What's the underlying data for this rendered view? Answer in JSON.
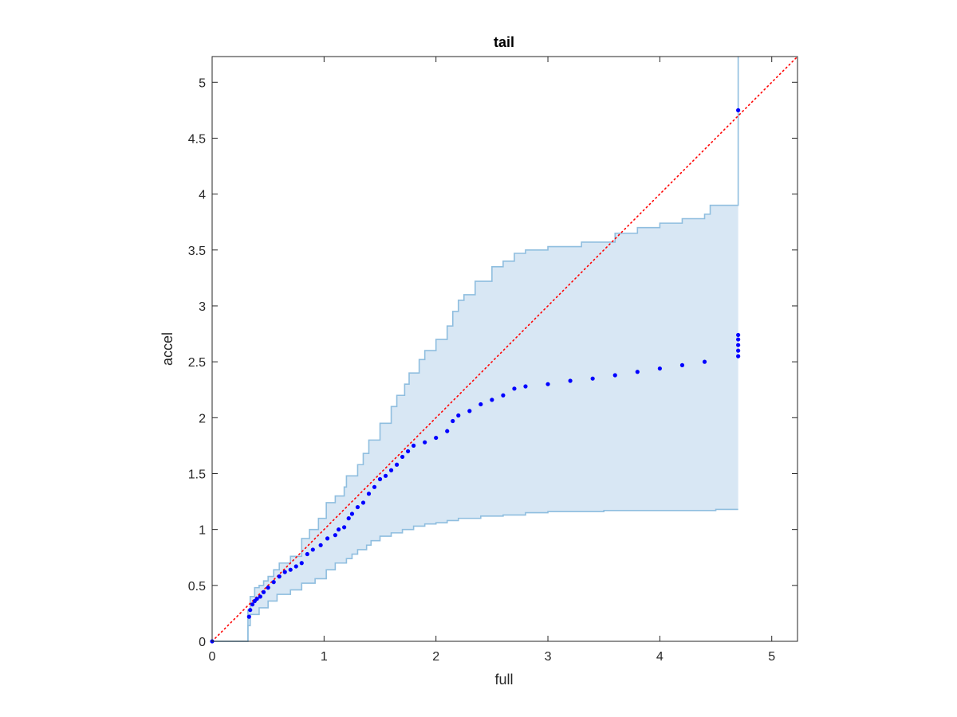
{
  "chart_data": {
    "type": "scatter",
    "title": "tail",
    "xlabel": "full",
    "ylabel": "accel",
    "xlim": [
      0,
      5.23
    ],
    "ylim": [
      0,
      5.23
    ],
    "x_ticks": [
      0,
      1,
      2,
      3,
      4,
      5
    ],
    "x_tick_labels": [
      "0",
      "1",
      "2",
      "3",
      "4",
      "5"
    ],
    "y_ticks": [
      0,
      0.5,
      1,
      1.5,
      2,
      2.5,
      3,
      3.5,
      4,
      4.5,
      5
    ],
    "y_tick_labels": [
      "0",
      "0.5",
      "1",
      "1.5",
      "2",
      "2.5",
      "3",
      "3.5",
      "4",
      "4.5",
      "5"
    ],
    "grid": false,
    "box": true,
    "colors": {
      "points": "#0000ff",
      "band_fill": "#d8e7f4",
      "band_edge": "#8fbedf",
      "reference": "#ff0000",
      "axis": "#262626"
    },
    "reference_line": {
      "style": "dotted",
      "from": [
        0,
        0
      ],
      "to": [
        5.23,
        5.23
      ]
    },
    "band": {
      "upper": [
        [
          0,
          0
        ],
        [
          0.32,
          0.28
        ],
        [
          0.34,
          0.4
        ],
        [
          0.38,
          0.48
        ],
        [
          0.42,
          0.5
        ],
        [
          0.46,
          0.54
        ],
        [
          0.5,
          0.58
        ],
        [
          0.55,
          0.64
        ],
        [
          0.6,
          0.7
        ],
        [
          0.7,
          0.76
        ],
        [
          0.8,
          0.92
        ],
        [
          0.87,
          1.0
        ],
        [
          0.95,
          1.1
        ],
        [
          1.02,
          1.24
        ],
        [
          1.1,
          1.3
        ],
        [
          1.18,
          1.38
        ],
        [
          1.2,
          1.48
        ],
        [
          1.3,
          1.58
        ],
        [
          1.35,
          1.68
        ],
        [
          1.4,
          1.8
        ],
        [
          1.5,
          1.95
        ],
        [
          1.6,
          2.1
        ],
        [
          1.65,
          2.2
        ],
        [
          1.72,
          2.3
        ],
        [
          1.76,
          2.4
        ],
        [
          1.85,
          2.52
        ],
        [
          1.9,
          2.6
        ],
        [
          2.0,
          2.7
        ],
        [
          2.1,
          2.82
        ],
        [
          2.15,
          2.95
        ],
        [
          2.2,
          3.05
        ],
        [
          2.25,
          3.1
        ],
        [
          2.35,
          3.22
        ],
        [
          2.5,
          3.35
        ],
        [
          2.6,
          3.4
        ],
        [
          2.7,
          3.47
        ],
        [
          2.8,
          3.5
        ],
        [
          3.0,
          3.53
        ],
        [
          3.3,
          3.57
        ],
        [
          3.6,
          3.65
        ],
        [
          3.8,
          3.7
        ],
        [
          4.0,
          3.74
        ],
        [
          4.2,
          3.78
        ],
        [
          4.4,
          3.82
        ],
        [
          4.45,
          3.9
        ],
        [
          4.58,
          3.9
        ],
        [
          4.7,
          3.9
        ],
        [
          4.7,
          5.23
        ]
      ],
      "lower": [
        [
          0,
          0
        ],
        [
          0.32,
          0.14
        ],
        [
          0.34,
          0.24
        ],
        [
          0.42,
          0.3
        ],
        [
          0.5,
          0.36
        ],
        [
          0.58,
          0.42
        ],
        [
          0.7,
          0.46
        ],
        [
          0.8,
          0.52
        ],
        [
          0.92,
          0.56
        ],
        [
          1.02,
          0.64
        ],
        [
          1.1,
          0.7
        ],
        [
          1.2,
          0.74
        ],
        [
          1.25,
          0.78
        ],
        [
          1.3,
          0.82
        ],
        [
          1.38,
          0.86
        ],
        [
          1.42,
          0.9
        ],
        [
          1.5,
          0.94
        ],
        [
          1.6,
          0.97
        ],
        [
          1.7,
          1.0
        ],
        [
          1.8,
          1.03
        ],
        [
          1.9,
          1.05
        ],
        [
          2.0,
          1.06
        ],
        [
          2.1,
          1.08
        ],
        [
          2.2,
          1.1
        ],
        [
          2.4,
          1.12
        ],
        [
          2.6,
          1.13
        ],
        [
          2.8,
          1.15
        ],
        [
          3.0,
          1.16
        ],
        [
          3.5,
          1.17
        ],
        [
          4.0,
          1.17
        ],
        [
          4.5,
          1.18
        ],
        [
          4.7,
          1.18
        ]
      ]
    },
    "series": [
      {
        "values": [
          [
            0,
            0
          ],
          [
            0.33,
            0.22
          ],
          [
            0.34,
            0.28
          ],
          [
            0.36,
            0.33
          ],
          [
            0.38,
            0.36
          ],
          [
            0.4,
            0.38
          ],
          [
            0.43,
            0.4
          ],
          [
            0.46,
            0.44
          ],
          [
            0.5,
            0.48
          ],
          [
            0.55,
            0.53
          ],
          [
            0.6,
            0.58
          ],
          [
            0.65,
            0.62
          ],
          [
            0.7,
            0.64
          ],
          [
            0.75,
            0.67
          ],
          [
            0.8,
            0.7
          ],
          [
            0.85,
            0.78
          ],
          [
            0.9,
            0.82
          ],
          [
            0.97,
            0.86
          ],
          [
            1.03,
            0.92
          ],
          [
            1.1,
            0.95
          ],
          [
            1.13,
            1.0
          ],
          [
            1.18,
            1.02
          ],
          [
            1.22,
            1.1
          ],
          [
            1.25,
            1.14
          ],
          [
            1.3,
            1.2
          ],
          [
            1.35,
            1.24
          ],
          [
            1.4,
            1.32
          ],
          [
            1.45,
            1.38
          ],
          [
            1.5,
            1.45
          ],
          [
            1.55,
            1.48
          ],
          [
            1.6,
            1.53
          ],
          [
            1.65,
            1.58
          ],
          [
            1.7,
            1.65
          ],
          [
            1.75,
            1.7
          ],
          [
            1.8,
            1.75
          ],
          [
            1.9,
            1.78
          ],
          [
            2.0,
            1.82
          ],
          [
            2.1,
            1.88
          ],
          [
            2.15,
            1.97
          ],
          [
            2.2,
            2.02
          ],
          [
            2.3,
            2.06
          ],
          [
            2.4,
            2.12
          ],
          [
            2.5,
            2.16
          ],
          [
            2.6,
            2.2
          ],
          [
            2.7,
            2.26
          ],
          [
            2.8,
            2.28
          ],
          [
            3.0,
            2.3
          ],
          [
            3.2,
            2.33
          ],
          [
            3.4,
            2.35
          ],
          [
            3.6,
            2.38
          ],
          [
            3.8,
            2.41
          ],
          [
            4.0,
            2.44
          ],
          [
            4.2,
            2.47
          ],
          [
            4.4,
            2.5
          ],
          [
            4.7,
            2.55
          ],
          [
            4.7,
            2.6
          ],
          [
            4.7,
            2.65
          ],
          [
            4.7,
            2.7
          ],
          [
            4.7,
            2.74
          ],
          [
            4.7,
            4.75
          ]
        ]
      }
    ]
  }
}
